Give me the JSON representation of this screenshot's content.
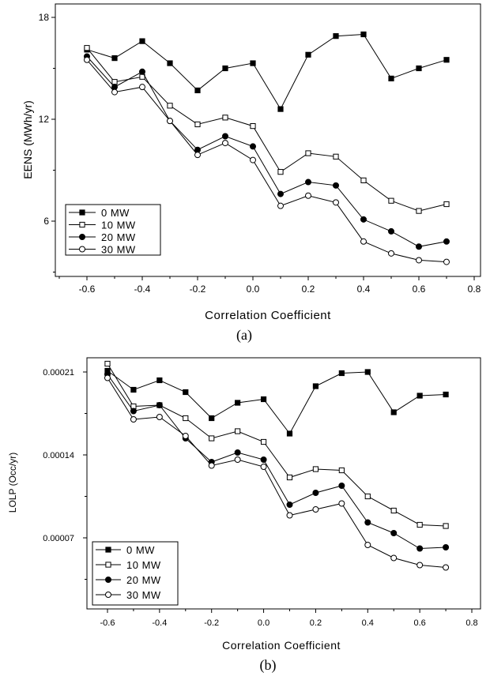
{
  "chart_data": [
    {
      "type": "line",
      "title": "",
      "caption": "(a)",
      "xlabel": "Correlation Coefficient",
      "ylabel": "EENS (MWh/yr)",
      "xlim": [
        -0.7,
        0.8
      ],
      "ylim": [
        3,
        18.5
      ],
      "x_ticks": [
        "-0.6",
        "-0.4",
        "-0.2",
        "0.0",
        "0.2",
        "0.4",
        "0.6",
        "0.8"
      ],
      "y_ticks": [
        "6",
        "12",
        "18"
      ],
      "grid": false,
      "legend_position": "bottom-left",
      "x": [
        -0.6,
        -0.5,
        -0.4,
        -0.3,
        -0.2,
        -0.1,
        0.0,
        0.1,
        0.2,
        0.3,
        0.4,
        0.5,
        0.6,
        0.7
      ],
      "series": [
        {
          "name": "0 MW",
          "marker": "filled-square",
          "values": [
            16.1,
            15.6,
            16.6,
            15.3,
            13.7,
            15.0,
            15.3,
            12.6,
            15.8,
            16.9,
            17.0,
            14.4,
            15.0,
            15.5
          ]
        },
        {
          "name": "10 MW",
          "marker": "open-square",
          "values": [
            16.2,
            14.2,
            14.5,
            12.8,
            11.7,
            12.1,
            11.6,
            8.9,
            10.0,
            9.8,
            8.4,
            7.2,
            6.6,
            7.0
          ]
        },
        {
          "name": "20 MW",
          "marker": "filled-circle",
          "values": [
            15.7,
            13.9,
            14.8,
            11.9,
            10.2,
            11.0,
            10.4,
            7.6,
            8.3,
            8.1,
            6.1,
            5.4,
            4.5,
            4.8
          ]
        },
        {
          "name": "30 MW",
          "marker": "open-circle",
          "values": [
            15.5,
            13.6,
            13.9,
            11.9,
            9.9,
            10.6,
            9.6,
            6.9,
            7.5,
            7.1,
            4.8,
            4.1,
            3.7,
            3.6
          ]
        }
      ]
    },
    {
      "type": "line",
      "title": "",
      "caption": "(b)",
      "xlabel": "Correlation Coefficient",
      "ylabel": "LOLP (Occ/yr)",
      "xlim": [
        -0.7,
        0.8
      ],
      "ylim": [
        4e-05,
        0.000215
      ],
      "x_ticks": [
        "-0.6",
        "-0.4",
        "-0.2",
        "0.0",
        "0.2",
        "0.4",
        "0.6",
        "0.8"
      ],
      "y_ticks": [
        "0.00007",
        "0.00014",
        "0.00021"
      ],
      "grid": false,
      "legend_position": "bottom-left",
      "x": [
        -0.6,
        -0.5,
        -0.4,
        -0.3,
        -0.2,
        -0.1,
        0.0,
        0.1,
        0.2,
        0.3,
        0.4,
        0.5,
        0.6,
        0.7
      ],
      "series": [
        {
          "name": "0 MW",
          "marker": "filled-square",
          "values": [
            0.000211,
            0.000195,
            0.000203,
            0.000193,
            0.000171,
            0.000184,
            0.000187,
            0.000158,
            0.000198,
            0.000209,
            0.00021,
            0.000176,
            0.00019,
            0.000191
          ]
        },
        {
          "name": "10 MW",
          "marker": "open-square",
          "values": [
            0.000217,
            0.000181,
            0.000182,
            0.000171,
            0.000154,
            0.00016,
            0.000151,
            0.000121,
            0.000128,
            0.000127,
            0.000105,
            9.3e-05,
            8.1e-05,
            8e-05
          ]
        },
        {
          "name": "20 MW",
          "marker": "filled-circle",
          "values": [
            0.000208,
            0.000177,
            0.000182,
            0.000154,
            0.000134,
            0.000142,
            0.000136,
            9.8e-05,
            0.000108,
            0.000114,
            8.3e-05,
            7.4e-05,
            6.1e-05,
            6.2e-05
          ]
        },
        {
          "name": "30 MW",
          "marker": "open-circle",
          "values": [
            0.000205,
            0.00017,
            0.000172,
            0.000156,
            0.000131,
            0.000136,
            0.00013,
            8.9e-05,
            9.4e-05,
            9.9e-05,
            6.4e-05,
            5.3e-05,
            4.7e-05,
            4.5e-05
          ]
        }
      ]
    }
  ]
}
